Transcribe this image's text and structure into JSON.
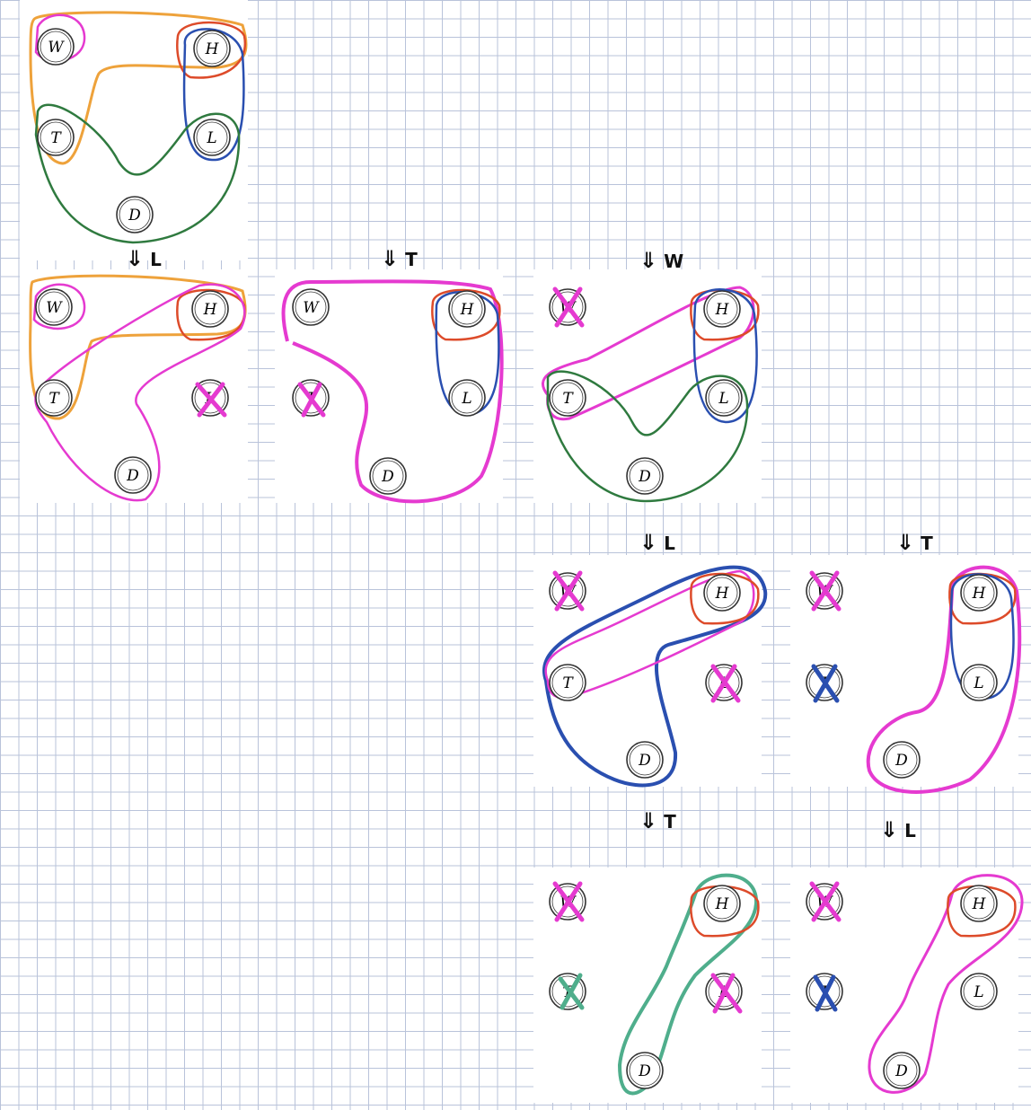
{
  "nodes": {
    "W": "W",
    "H": "H",
    "T": "T",
    "L": "L",
    "D": "D"
  },
  "panels": [
    {
      "id": "p1",
      "step_label": ""
    },
    {
      "id": "p2",
      "step_label": "L"
    },
    {
      "id": "p3",
      "step_label": "T"
    },
    {
      "id": "p4",
      "step_label": "W"
    },
    {
      "id": "p5",
      "step_label": "L"
    },
    {
      "id": "p6",
      "step_label": "T"
    },
    {
      "id": "p7",
      "step_label": "T"
    },
    {
      "id": "p8",
      "step_label": "L"
    }
  ],
  "arrow_glyph": "⇓",
  "colors": {
    "orange": "#eea23b",
    "pink": "#e53ad0",
    "red": "#dd4b2a",
    "blue": "#2a4fb0",
    "green": "#2f7a3f",
    "teal": "#4fae8c",
    "node_stroke": "#333333"
  }
}
